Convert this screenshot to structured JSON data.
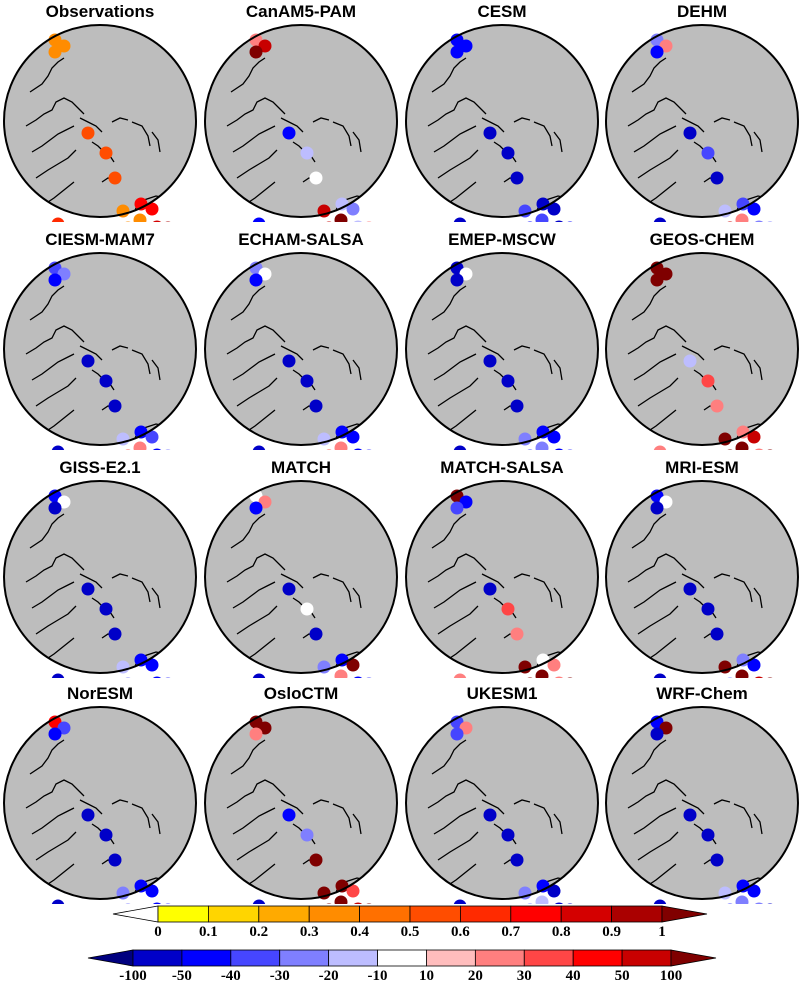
{
  "panels": [
    {
      "title": "Observations",
      "scale": "seq",
      "dots": [
        {
          "site": "alaska-1",
          "v": 0.3
        },
        {
          "site": "alaska-2",
          "v": 0.3
        },
        {
          "site": "alaska-3",
          "v": 0.3
        },
        {
          "site": "canada-1",
          "v": 0.5
        },
        {
          "site": "canada-2",
          "v": 0.5
        },
        {
          "site": "greenland-1",
          "v": 0.5
        },
        {
          "site": "siberia-1",
          "v": 0.6
        },
        {
          "site": "scand-1",
          "v": 0.7
        },
        {
          "site": "scand-2",
          "v": 0.7
        },
        {
          "site": "scand-3",
          "v": 0.3
        },
        {
          "site": "scand-4",
          "v": 0.3
        },
        {
          "site": "scand-5",
          "v": 0.8
        },
        {
          "site": "scand-6",
          "v": 0.9
        },
        {
          "site": "scand-7",
          "v": 0.3
        }
      ]
    },
    {
      "title": "CanAM5-PAM",
      "scale": "div",
      "dots": [
        {
          "site": "alaska-1",
          "v": 20
        },
        {
          "site": "alaska-2",
          "v": 60
        },
        {
          "site": "alaska-3",
          "v": 100
        },
        {
          "site": "canada-1",
          "v": -50
        },
        {
          "site": "canada-2",
          "v": -20
        },
        {
          "site": "greenland-1",
          "v": 0
        },
        {
          "site": "siberia-1",
          "v": -50
        },
        {
          "site": "scand-1",
          "v": -20
        },
        {
          "site": "scand-2",
          "v": -30
        },
        {
          "site": "scand-3",
          "v": 100
        },
        {
          "site": "scand-4",
          "v": 60
        },
        {
          "site": "scand-5",
          "v": -20
        },
        {
          "site": "scand-6",
          "v": 20
        },
        {
          "site": "scand-7",
          "v": 60
        }
      ]
    },
    {
      "title": "CESM",
      "scale": "div",
      "dots": [
        {
          "site": "alaska-1",
          "v": -50
        },
        {
          "site": "alaska-2",
          "v": -50
        },
        {
          "site": "alaska-3",
          "v": -50
        },
        {
          "site": "canada-1",
          "v": -100
        },
        {
          "site": "canada-2",
          "v": -100
        },
        {
          "site": "greenland-1",
          "v": -100
        },
        {
          "site": "siberia-1",
          "v": -100
        },
        {
          "site": "scand-1",
          "v": -100
        },
        {
          "site": "scand-2",
          "v": -100
        },
        {
          "site": "scand-3",
          "v": -40
        },
        {
          "site": "scand-4",
          "v": -50
        },
        {
          "site": "scand-5",
          "v": -100
        },
        {
          "site": "scand-6",
          "v": -50
        },
        {
          "site": "scand-7",
          "v": -40
        }
      ]
    },
    {
      "title": "DEHM",
      "scale": "div",
      "dots": [
        {
          "site": "alaska-1",
          "v": -30
        },
        {
          "site": "alaska-2",
          "v": 20
        },
        {
          "site": "alaska-3",
          "v": -50
        },
        {
          "site": "canada-1",
          "v": -100
        },
        {
          "site": "canada-2",
          "v": -40
        },
        {
          "site": "greenland-1",
          "v": -100
        },
        {
          "site": "siberia-1",
          "v": -100
        },
        {
          "site": "scand-1",
          "v": -40
        },
        {
          "site": "scand-2",
          "v": -50
        },
        {
          "site": "scand-3",
          "v": 20
        },
        {
          "site": "scand-4",
          "v": 60
        },
        {
          "site": "scand-5",
          "v": -30
        },
        {
          "site": "scand-6",
          "v": -30
        },
        {
          "site": "scand-7",
          "v": -20
        }
      ]
    },
    {
      "title": "CIESM-MAM7",
      "scale": "div",
      "dots": [
        {
          "site": "alaska-1",
          "v": -40
        },
        {
          "site": "alaska-2",
          "v": -30
        },
        {
          "site": "alaska-3",
          "v": -50
        },
        {
          "site": "canada-1",
          "v": -100
        },
        {
          "site": "canada-2",
          "v": -100
        },
        {
          "site": "greenland-1",
          "v": -100
        },
        {
          "site": "siberia-1",
          "v": -100
        },
        {
          "site": "scand-1",
          "v": -50
        },
        {
          "site": "scand-2",
          "v": -40
        },
        {
          "site": "scand-3",
          "v": 20
        },
        {
          "site": "scand-4",
          "v": 30
        },
        {
          "site": "scand-5",
          "v": -50
        },
        {
          "site": "scand-6",
          "v": -30
        },
        {
          "site": "scand-7",
          "v": -20
        }
      ]
    },
    {
      "title": "ECHAM-SALSA",
      "scale": "div",
      "dots": [
        {
          "site": "alaska-1",
          "v": -30
        },
        {
          "site": "alaska-2",
          "v": 0
        },
        {
          "site": "alaska-3",
          "v": -50
        },
        {
          "site": "canada-1",
          "v": -100
        },
        {
          "site": "canada-2",
          "v": -100
        },
        {
          "site": "greenland-1",
          "v": -100
        },
        {
          "site": "siberia-1",
          "v": -100
        },
        {
          "site": "scand-1",
          "v": -50
        },
        {
          "site": "scand-2",
          "v": -50
        },
        {
          "site": "scand-3",
          "v": 20
        },
        {
          "site": "scand-4",
          "v": 30
        },
        {
          "site": "scand-5",
          "v": -50
        },
        {
          "site": "scand-6",
          "v": -40
        },
        {
          "site": "scand-7",
          "v": -20
        }
      ]
    },
    {
      "title": "EMEP-MSCW",
      "scale": "div",
      "dots": [
        {
          "site": "alaska-1",
          "v": -100
        },
        {
          "site": "alaska-2",
          "v": 0
        },
        {
          "site": "alaska-3",
          "v": -100
        },
        {
          "site": "canada-1",
          "v": -100
        },
        {
          "site": "canada-2",
          "v": -100
        },
        {
          "site": "greenland-1",
          "v": -100
        },
        {
          "site": "siberia-1",
          "v": -100
        },
        {
          "site": "scand-1",
          "v": -50
        },
        {
          "site": "scand-2",
          "v": -50
        },
        {
          "site": "scand-3",
          "v": -30
        },
        {
          "site": "scand-4",
          "v": -40
        },
        {
          "site": "scand-5",
          "v": -50
        },
        {
          "site": "scand-6",
          "v": -40
        },
        {
          "site": "scand-7",
          "v": -30
        }
      ]
    },
    {
      "title": "GEOS-CHEM",
      "scale": "div",
      "dots": [
        {
          "site": "alaska-1",
          "v": 100
        },
        {
          "site": "alaska-2",
          "v": 100
        },
        {
          "site": "alaska-3",
          "v": 100
        },
        {
          "site": "canada-1",
          "v": -20
        },
        {
          "site": "canada-2",
          "v": 30
        },
        {
          "site": "greenland-1",
          "v": 20
        },
        {
          "site": "siberia-1",
          "v": 20
        },
        {
          "site": "scand-1",
          "v": 20
        },
        {
          "site": "scand-2",
          "v": 60
        },
        {
          "site": "scand-3",
          "v": 100
        },
        {
          "site": "scand-4",
          "v": 100
        },
        {
          "site": "scand-5",
          "v": 20
        },
        {
          "site": "scand-6",
          "v": 100
        },
        {
          "site": "scand-7",
          "v": 100
        }
      ]
    },
    {
      "title": "GISS-E2.1",
      "scale": "div",
      "dots": [
        {
          "site": "alaska-1",
          "v": -50
        },
        {
          "site": "alaska-2",
          "v": 0
        },
        {
          "site": "alaska-3",
          "v": -100
        },
        {
          "site": "canada-1",
          "v": -100
        },
        {
          "site": "canada-2",
          "v": -100
        },
        {
          "site": "greenland-1",
          "v": -100
        },
        {
          "site": "siberia-1",
          "v": -100
        },
        {
          "site": "scand-1",
          "v": -50
        },
        {
          "site": "scand-2",
          "v": -50
        },
        {
          "site": "scand-3",
          "v": 0
        },
        {
          "site": "scand-4",
          "v": -30
        },
        {
          "site": "scand-5",
          "v": -50
        },
        {
          "site": "scand-6",
          "v": -40
        },
        {
          "site": "scand-7",
          "v": -20
        }
      ]
    },
    {
      "title": "MATCH",
      "scale": "div",
      "dots": [
        {
          "site": "alaska-1",
          "v": 0
        },
        {
          "site": "alaska-2",
          "v": 20
        },
        {
          "site": "alaska-3",
          "v": -50
        },
        {
          "site": "canada-1",
          "v": -100
        },
        {
          "site": "canada-2",
          "v": 0
        },
        {
          "site": "greenland-1",
          "v": -100
        },
        {
          "site": "siberia-1",
          "v": -100
        },
        {
          "site": "scand-1",
          "v": -50
        },
        {
          "site": "scand-2",
          "v": 100
        },
        {
          "site": "scand-3",
          "v": 20
        },
        {
          "site": "scand-4",
          "v": 0
        },
        {
          "site": "scand-5",
          "v": -50
        },
        {
          "site": "scand-6",
          "v": -40
        },
        {
          "site": "scand-7",
          "v": -30
        }
      ]
    },
    {
      "title": "MATCH-SALSA",
      "scale": "div",
      "dots": [
        {
          "site": "alaska-1",
          "v": 100
        },
        {
          "site": "alaska-2",
          "v": -50
        },
        {
          "site": "alaska-3",
          "v": -40
        },
        {
          "site": "canada-1",
          "v": -100
        },
        {
          "site": "canada-2",
          "v": 30
        },
        {
          "site": "greenland-1",
          "v": 20
        },
        {
          "site": "siberia-1",
          "v": 20
        },
        {
          "site": "scand-1",
          "v": 0
        },
        {
          "site": "scand-2",
          "v": 20
        },
        {
          "site": "scand-3",
          "v": 100
        },
        {
          "site": "scand-4",
          "v": 100
        },
        {
          "site": "scand-5",
          "v": 20
        },
        {
          "site": "scand-6",
          "v": 100
        },
        {
          "site": "scand-7",
          "v": 100
        }
      ]
    },
    {
      "title": "MRI-ESM",
      "scale": "div",
      "dots": [
        {
          "site": "alaska-1",
          "v": -50
        },
        {
          "site": "alaska-2",
          "v": 0
        },
        {
          "site": "alaska-3",
          "v": -100
        },
        {
          "site": "canada-1",
          "v": -100
        },
        {
          "site": "canada-2",
          "v": -100
        },
        {
          "site": "greenland-1",
          "v": -100
        },
        {
          "site": "siberia-1",
          "v": -100
        },
        {
          "site": "scand-1",
          "v": -30
        },
        {
          "site": "scand-2",
          "v": -50
        },
        {
          "site": "scand-3",
          "v": 100
        },
        {
          "site": "scand-4",
          "v": -30
        },
        {
          "site": "scand-5",
          "v": 60
        },
        {
          "site": "scand-6",
          "v": 100
        },
        {
          "site": "scand-7",
          "v": 100
        }
      ]
    },
    {
      "title": "NorESM",
      "scale": "div",
      "dots": [
        {
          "site": "alaska-1",
          "v": 40
        },
        {
          "site": "alaska-2",
          "v": -40
        },
        {
          "site": "alaska-3",
          "v": -50
        },
        {
          "site": "canada-1",
          "v": -100
        },
        {
          "site": "canada-2",
          "v": -100
        },
        {
          "site": "greenland-1",
          "v": -100
        },
        {
          "site": "siberia-1",
          "v": -100
        },
        {
          "site": "scand-1",
          "v": -50
        },
        {
          "site": "scand-2",
          "v": -50
        },
        {
          "site": "scand-3",
          "v": 0
        },
        {
          "site": "scand-4",
          "v": -30
        },
        {
          "site": "scand-5",
          "v": -50
        },
        {
          "site": "scand-6",
          "v": -40
        },
        {
          "site": "scand-7",
          "v": -30
        }
      ]
    },
    {
      "title": "OsloCTM",
      "scale": "div",
      "dots": [
        {
          "site": "alaska-1",
          "v": 100
        },
        {
          "site": "alaska-2",
          "v": 100
        },
        {
          "site": "alaska-3",
          "v": 20
        },
        {
          "site": "canada-1",
          "v": -50
        },
        {
          "site": "canada-2",
          "v": -30
        },
        {
          "site": "greenland-1",
          "v": 100
        },
        {
          "site": "siberia-1",
          "v": -100
        },
        {
          "site": "scand-1",
          "v": 100
        },
        {
          "site": "scand-2",
          "v": 30
        },
        {
          "site": "scand-3",
          "v": 100
        },
        {
          "site": "scand-4",
          "v": 100
        },
        {
          "site": "scand-5",
          "v": 60
        },
        {
          "site": "scand-6",
          "v": 100
        },
        {
          "site": "scand-7",
          "v": 100
        }
      ]
    },
    {
      "title": "UKESM1",
      "scale": "div",
      "dots": [
        {
          "site": "alaska-1",
          "v": -40
        },
        {
          "site": "alaska-2",
          "v": 20
        },
        {
          "site": "alaska-3",
          "v": -40
        },
        {
          "site": "canada-1",
          "v": -100
        },
        {
          "site": "canada-2",
          "v": -100
        },
        {
          "site": "greenland-1",
          "v": -100
        },
        {
          "site": "siberia-1",
          "v": -100
        },
        {
          "site": "scand-1",
          "v": -50
        },
        {
          "site": "scand-2",
          "v": -100
        },
        {
          "site": "scand-3",
          "v": -20
        },
        {
          "site": "scand-4",
          "v": -30
        },
        {
          "site": "scand-5",
          "v": -100
        },
        {
          "site": "scand-6",
          "v": -100
        },
        {
          "site": "scand-7",
          "v": -30
        }
      ]
    },
    {
      "title": "WRF-Chem",
      "scale": "div",
      "dots": [
        {
          "site": "alaska-1",
          "v": -50
        },
        {
          "site": "alaska-2",
          "v": 100
        },
        {
          "site": "alaska-3",
          "v": -100
        },
        {
          "site": "canada-1",
          "v": -100
        },
        {
          "site": "canada-2",
          "v": -100
        },
        {
          "site": "greenland-1",
          "v": -100
        },
        {
          "site": "siberia-1",
          "v": -100
        },
        {
          "site": "scand-1",
          "v": -50
        },
        {
          "site": "scand-2",
          "v": -50
        },
        {
          "site": "scand-3",
          "v": -30
        },
        {
          "site": "scand-4",
          "v": -40
        },
        {
          "site": "scand-5",
          "v": -30
        },
        {
          "site": "scand-6",
          "v": -100
        },
        {
          "site": "scand-7",
          "v": -20
        }
      ]
    }
  ],
  "colorbars": {
    "sequential": {
      "labels": [
        "0",
        "0.1",
        "0.2",
        "0.3",
        "0.4",
        "0.5",
        "0.6",
        "0.7",
        "0.8",
        "0.9",
        "1"
      ],
      "colors": [
        "#ffffff",
        "#ffff00",
        "#ffd500",
        "#ffaa00",
        "#ff8c00",
        "#ff7000",
        "#ff4d00",
        "#ff2a00",
        "#ff0000",
        "#d40000",
        "#aa0000",
        "#800000"
      ]
    },
    "diverging": {
      "labels": [
        "-100",
        "-50",
        "-40",
        "-30",
        "-20",
        "-10",
        "10",
        "20",
        "30",
        "40",
        "50",
        "100"
      ],
      "colors": [
        "#00007f",
        "#0000c8",
        "#0000ff",
        "#4646ff",
        "#7f7fff",
        "#bdbdff",
        "#ffffff",
        "#ffbdbd",
        "#ff7f7f",
        "#ff4646",
        "#ff0000",
        "#c80000",
        "#7f0000"
      ]
    }
  },
  "map_colors": {
    "land": "#bdbdbd",
    "coast": "#000000"
  }
}
